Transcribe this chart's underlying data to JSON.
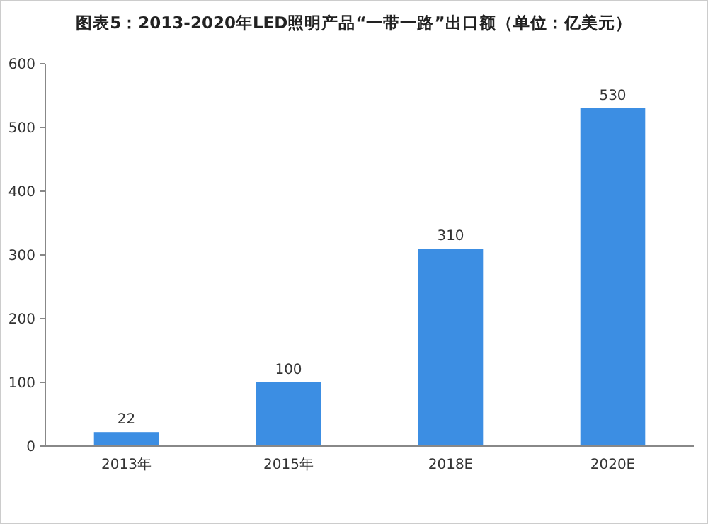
{
  "chart_data": {
    "type": "bar",
    "title": "图表5：2013-2020年LED照明产品“一带一路”出口额（单位：亿美元）",
    "categories": [
      "2013年",
      "2015年",
      "2018E",
      "2020E"
    ],
    "values": [
      22,
      100,
      310,
      530
    ],
    "color": "#3c8ee3",
    "ylim": [
      0,
      600
    ],
    "yticks": [
      0,
      100,
      200,
      300,
      400,
      500,
      600
    ],
    "data_labels": true
  }
}
